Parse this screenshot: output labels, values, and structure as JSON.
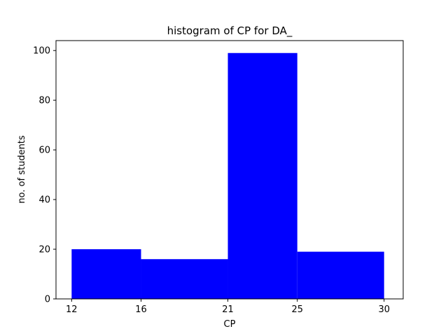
{
  "chart_data": {
    "type": "bar",
    "title": "histogram of CP for DA_",
    "xlabel": "CP",
    "ylabel": "no. of students",
    "bins": [
      {
        "start": 12,
        "end": 16,
        "value": 20
      },
      {
        "start": 16,
        "end": 21,
        "value": 16
      },
      {
        "start": 21,
        "end": 25,
        "value": 99
      },
      {
        "start": 25,
        "end": 30,
        "value": 19
      }
    ],
    "xticks": [
      12,
      16,
      21,
      25,
      30
    ],
    "yticks": [
      0,
      20,
      40,
      60,
      80,
      100
    ],
    "xlim": [
      11.1,
      31.1
    ],
    "ylim": [
      0,
      104
    ],
    "bar_color": "#0000ff",
    "grid": false
  }
}
